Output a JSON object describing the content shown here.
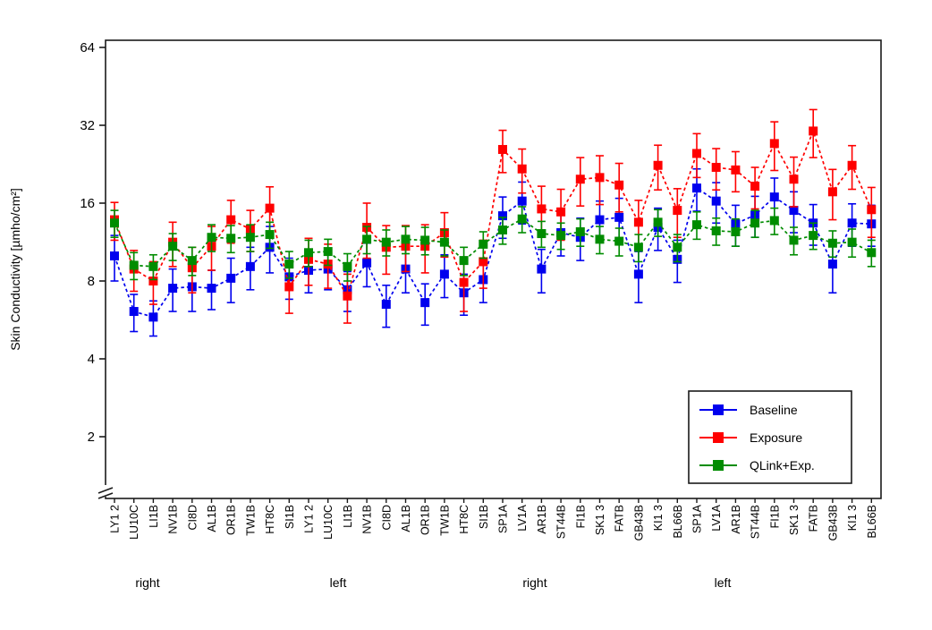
{
  "chart_data": {
    "type": "line",
    "title": "",
    "ylabel": "Skin Conductivity [µmho/cm²]",
    "xlabel": "",
    "y_scale": "log2",
    "ylim": [
      1.8,
      64
    ],
    "y_ticks": [
      64,
      32,
      16,
      8,
      4,
      2
    ],
    "grid": false,
    "axis_break_bottom_left": true,
    "legend_position": "lower-right-inside",
    "categories": [
      "LY1 2",
      "LU10C",
      "LI1B",
      "NV1B",
      "CI8D",
      "AL1B",
      "OR1B",
      "TW1B",
      "HT8C",
      "SI1B",
      "LY1 2",
      "LU10C",
      "LI1B",
      "NV1B",
      "CI8D",
      "AL1B",
      "OR1B",
      "TW1B",
      "HT8C",
      "SI1B",
      "SP1A",
      "LV1A",
      "AR1B",
      "ST44B",
      "FI1B",
      "SK1 3",
      "FATB",
      "GB43B",
      "KI1 3",
      "BL66B",
      "SP1A",
      "LV1A",
      "AR1B",
      "ST44B",
      "FI1B",
      "SK1 3",
      "FATB",
      "GB43B",
      "KI1 3",
      "BL66B"
    ],
    "x_groups": [
      {
        "label": "right",
        "from": 0,
        "to": 9
      },
      {
        "label": "left",
        "from": 10,
        "to": 19
      },
      {
        "label": "right",
        "from": 20,
        "to": 29
      },
      {
        "label": "left",
        "from": 30,
        "to": 39
      }
    ],
    "series": [
      {
        "key": "baseline",
        "name": "Baseline",
        "color": "#0000ee",
        "marker": "square",
        "values": [
          10.0,
          6.1,
          5.8,
          7.5,
          7.6,
          7.5,
          8.2,
          9.1,
          10.8,
          8.3,
          8.8,
          8.9,
          7.4,
          9.4,
          6.5,
          8.9,
          6.6,
          8.5,
          7.2,
          8.1,
          14.3,
          16.3,
          8.9,
          12.3,
          11.8,
          13.8,
          14.1,
          8.5,
          12.9,
          9.7,
          18.3,
          16.3,
          13.3,
          14.4,
          16.9,
          15.0,
          13.4,
          9.3,
          13.4,
          13.3
        ],
        "err": [
          2.0,
          1.0,
          0.9,
          1.4,
          1.5,
          1.3,
          1.6,
          1.7,
          2.2,
          1.5,
          1.6,
          1.5,
          1.3,
          1.8,
          1.2,
          1.7,
          1.2,
          1.6,
          1.3,
          1.5,
          2.6,
          3.0,
          1.7,
          2.3,
          2.2,
          2.5,
          2.6,
          1.9,
          2.4,
          1.8,
          3.4,
          2.9,
          2.4,
          2.6,
          3.1,
          2.7,
          2.4,
          2.1,
          2.5,
          2.4
        ]
      },
      {
        "key": "exposure",
        "name": "Exposure",
        "color": "#ff0000",
        "marker": "square",
        "values": [
          13.8,
          8.9,
          8.0,
          11.3,
          9.0,
          10.9,
          13.8,
          12.7,
          15.3,
          7.6,
          9.7,
          9.3,
          7.0,
          12.9,
          10.8,
          10.9,
          10.9,
          12.3,
          7.9,
          9.5,
          25.8,
          21.7,
          15.2,
          14.8,
          19.8,
          20.1,
          18.8,
          13.5,
          22.4,
          15.0,
          24.9,
          22.0,
          21.5,
          18.6,
          27.2,
          19.8,
          30.4,
          17.7,
          22.4,
          15.1
        ],
        "err": [
          2.3,
          1.6,
          1.5,
          2.2,
          1.8,
          2.1,
          2.6,
          2.3,
          3.2,
          1.6,
          2.0,
          1.8,
          1.5,
          3.1,
          2.3,
          2.2,
          2.3,
          2.4,
          1.8,
          2.0,
          4.8,
          4.2,
          3.4,
          3.3,
          4.2,
          4.3,
          4.0,
          2.9,
          4.4,
          3.2,
          4.8,
          4.0,
          3.8,
          3.4,
          5.8,
          4.3,
          6.4,
          3.9,
          4.3,
          3.3
        ]
      },
      {
        "key": "qlink",
        "name": "QLink+Exp.",
        "color": "#008c00",
        "marker": "square",
        "values": [
          13.4,
          9.2,
          9.1,
          10.9,
          9.6,
          11.8,
          11.7,
          11.8,
          12.1,
          9.3,
          10.3,
          10.4,
          9.1,
          11.6,
          11.3,
          11.6,
          11.5,
          11.3,
          9.6,
          11.1,
          12.6,
          13.9,
          12.2,
          12.0,
          12.4,
          11.6,
          11.4,
          10.8,
          13.5,
          10.8,
          13.2,
          12.5,
          12.4,
          13.4,
          13.7,
          11.5,
          12.0,
          11.2,
          11.3,
          10.3
        ],
        "err": [
          1.6,
          1.1,
          1.0,
          1.3,
          1.2,
          1.4,
          1.4,
          1.4,
          1.4,
          1.1,
          1.2,
          1.2,
          1.1,
          1.4,
          1.3,
          1.4,
          1.4,
          1.3,
          1.2,
          1.3,
          1.5,
          1.6,
          1.4,
          1.4,
          1.5,
          1.4,
          1.4,
          1.3,
          1.6,
          1.3,
          1.6,
          1.5,
          1.5,
          1.6,
          1.6,
          1.4,
          1.4,
          1.3,
          1.4,
          1.2
        ]
      }
    ]
  }
}
